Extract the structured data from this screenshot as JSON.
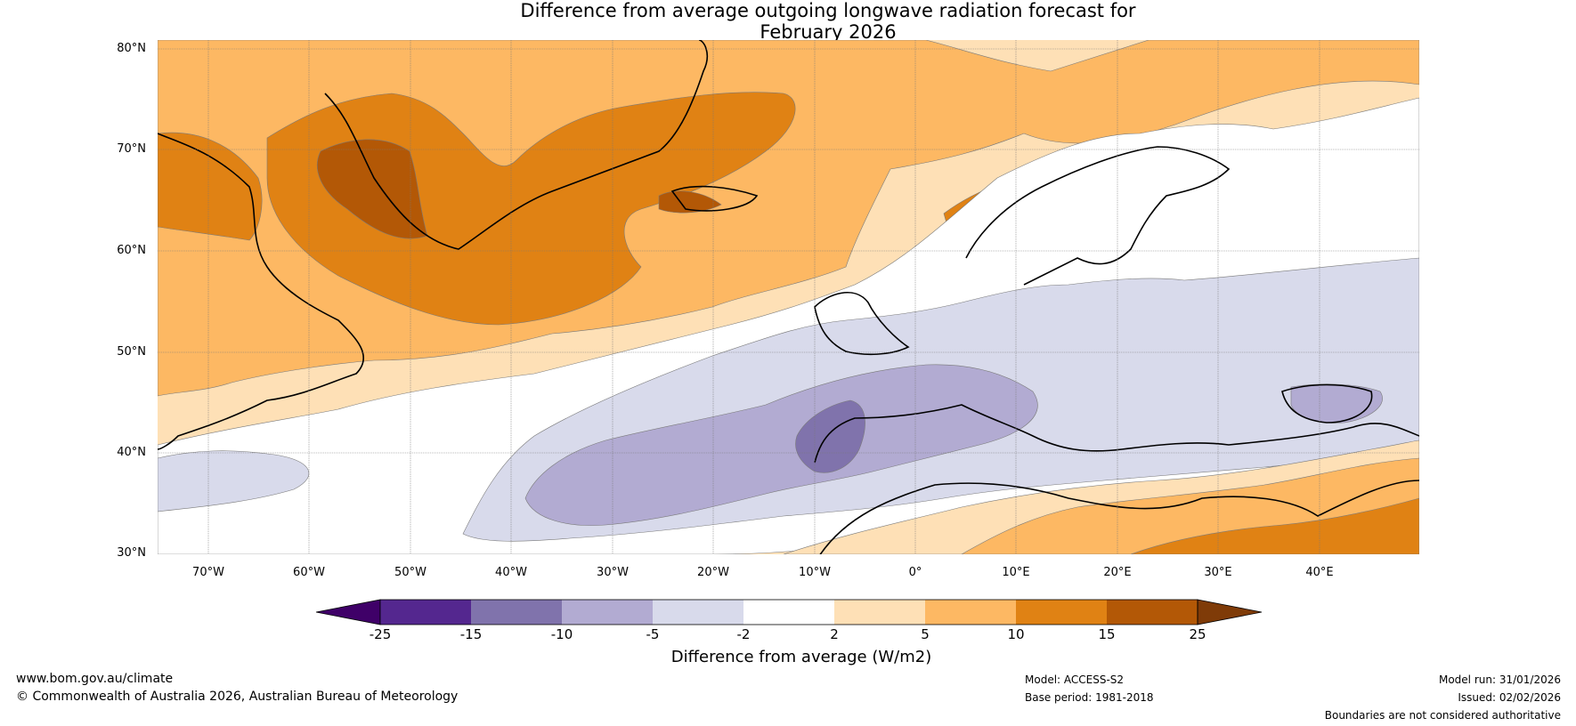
{
  "title": {
    "line1": "Difference from average outgoing longwave radiation forecast for",
    "line2": "February 2026"
  },
  "map": {
    "lat_labels": [
      "80°N",
      "70°N",
      "60°N",
      "50°N",
      "40°N",
      "30°N"
    ],
    "lon_labels": [
      "70°W",
      "60°W",
      "50°W",
      "40°W",
      "30°W",
      "20°W",
      "10°W",
      "0°",
      "10°E",
      "20°E",
      "30°E",
      "40°E"
    ],
    "lat_range": [
      30,
      81
    ],
    "lon_range": [
      -75,
      50
    ],
    "colors": {
      "n25": "#3f0068",
      "n15": "#54278f",
      "n10": "#8073ac",
      "n5": "#b2abd2",
      "n2": "#d8daeb",
      "zero": "#ffffff",
      "p2": "#fee0b6",
      "p5": "#fdb863",
      "p10": "#e08214",
      "p15": "#b35806",
      "p25": "#7f3b08"
    }
  },
  "colorbar": {
    "ticks": [
      "-25",
      "-15",
      "-10",
      "-5",
      "-2",
      "2",
      "5",
      "10",
      "15",
      "25"
    ],
    "label": "Difference from average (W/m2)"
  },
  "footer": {
    "website": "www.bom.gov.au/climate",
    "copyright": "© Commonwealth of Australia 2026, Australian Bureau of Meteorology",
    "model": "Model: ACCESS-S2",
    "base_period": "Base period: 1981-2018",
    "model_run": "Model run: 31/01/2026",
    "issued": "Issued: 02/02/2026",
    "disclaimer": "Boundaries are not considered authoritative"
  }
}
